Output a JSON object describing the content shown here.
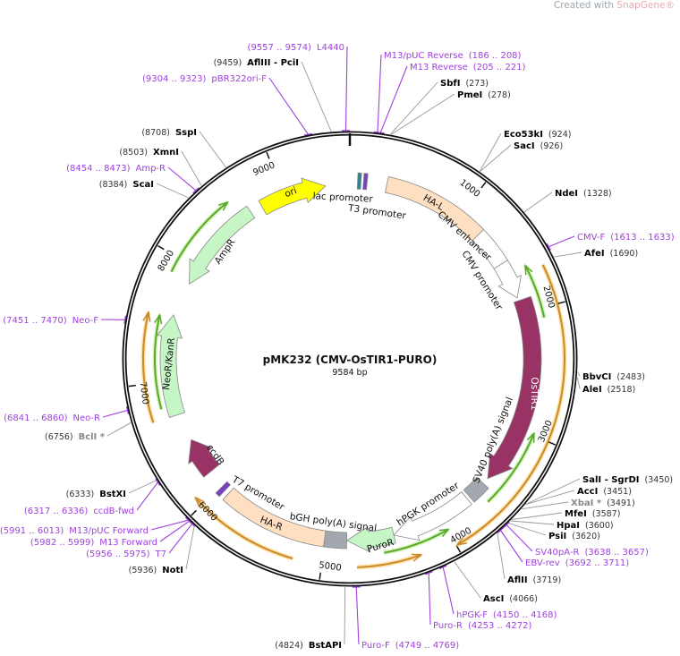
{
  "watermark": {
    "prefix": "Created with ",
    "brand": "SnapGene®"
  },
  "plasmid": {
    "name": "pMK232 (CMV-OsTIR1-PURO)",
    "length": "9584 bp"
  },
  "ticks": [
    "1000",
    "2000",
    "3000",
    "4000",
    "5000",
    "6000",
    "7000",
    "8000",
    "9000"
  ],
  "features": [
    {
      "label": "ori",
      "color": "#ffff00"
    },
    {
      "label": "lac promoter",
      "color": "#2f7f8f"
    },
    {
      "label": "T3 promoter",
      "color": "#7a3fc0"
    },
    {
      "label": "HA-L",
      "color": "#ffdfc2"
    },
    {
      "label": "CMV enhancer",
      "color": "#ffffff"
    },
    {
      "label": "CMV promoter",
      "color": "#ffffff"
    },
    {
      "label": "OsTIR1",
      "color": "#993366"
    },
    {
      "label": "SV40 poly(A) signal",
      "color": "#a3a8b0"
    },
    {
      "label": "hPGK promoter",
      "color": "#ffffff"
    },
    {
      "label": "PuroR",
      "color": "#c6f5c6"
    },
    {
      "label": "bGH poly(A) signal",
      "color": "#a3a8b0"
    },
    {
      "label": "HA-R",
      "color": "#ffdfc2"
    },
    {
      "label": "T7 promoter",
      "color": "#7a3fc0"
    },
    {
      "label": "ccdB",
      "color": "#993366"
    },
    {
      "label": "NeoR/KanR",
      "color": "#c6f5c6"
    },
    {
      "label": "AmpR",
      "color": "#c6f5c6"
    }
  ],
  "primer_colors": {
    "forward": "#5aa82a",
    "reverse": "#c88a2a"
  },
  "sites": [
    {
      "pos": "(9557 .. 9574)",
      "name": "L4440",
      "type": "primer"
    },
    {
      "pos": "(9459)",
      "name": "AflIII - PciI",
      "type": "enzyme"
    },
    {
      "pos": "(9304 .. 9323)",
      "name": "pBR322ori-F",
      "type": "primer"
    },
    {
      "pos": "(8708)",
      "name": "SspI",
      "type": "enzyme"
    },
    {
      "pos": "(8503)",
      "name": "XmnI",
      "type": "enzyme"
    },
    {
      "pos": "(8454 .. 8473)",
      "name": "Amp-R",
      "type": "primer"
    },
    {
      "pos": "(8384)",
      "name": "ScaI",
      "type": "enzyme"
    },
    {
      "pos": "(7451 .. 7470)",
      "name": "Neo-F",
      "type": "primer"
    },
    {
      "pos": "(6841 .. 6860)",
      "name": "Neo-R",
      "type": "primer"
    },
    {
      "pos": "(6756)",
      "name": "BclI *",
      "type": "nonunique"
    },
    {
      "pos": "(6333)",
      "name": "BstXI",
      "type": "enzyme"
    },
    {
      "pos": "(6317 .. 6336)",
      "name": "ccdB-fwd",
      "type": "primer"
    },
    {
      "pos": "(5991 .. 6013)",
      "name": "M13/pUC Forward",
      "type": "primer"
    },
    {
      "pos": "(5982 .. 5999)",
      "name": "M13 Forward",
      "type": "primer"
    },
    {
      "pos": "(5956 .. 5975)",
      "name": "T7",
      "type": "primer"
    },
    {
      "pos": "(5936)",
      "name": "NotI",
      "type": "enzyme"
    },
    {
      "pos": "(4824)",
      "name": "BstAPI",
      "type": "enzyme"
    },
    {
      "pos": "(186 .. 208)",
      "name": "M13/pUC Reverse",
      "type": "primer"
    },
    {
      "pos": "(205 .. 221)",
      "name": "M13 Reverse",
      "type": "primer"
    },
    {
      "pos": "(273)",
      "name": "SbfI",
      "type": "enzyme"
    },
    {
      "pos": "(278)",
      "name": "PmeI",
      "type": "enzyme"
    },
    {
      "pos": "(924)",
      "name": "Eco53kI",
      "type": "enzyme"
    },
    {
      "pos": "(926)",
      "name": "SacI",
      "type": "enzyme"
    },
    {
      "pos": "(1328)",
      "name": "NdeI",
      "type": "enzyme"
    },
    {
      "pos": "(1613 .. 1633)",
      "name": "CMV-F",
      "type": "primer"
    },
    {
      "pos": "(1690)",
      "name": "AfeI",
      "type": "enzyme"
    },
    {
      "pos": "(2483)",
      "name": "BbvCI",
      "type": "enzyme"
    },
    {
      "pos": "(2518)",
      "name": "AleI",
      "type": "enzyme"
    },
    {
      "pos": "(3450)",
      "name": "SalI - SgrDI",
      "type": "enzyme"
    },
    {
      "pos": "(3451)",
      "name": "AccI",
      "type": "enzyme"
    },
    {
      "pos": "(3491)",
      "name": "XbaI *",
      "type": "nonunique"
    },
    {
      "pos": "(3587)",
      "name": "MfeI",
      "type": "enzyme"
    },
    {
      "pos": "(3600)",
      "name": "HpaI",
      "type": "enzyme"
    },
    {
      "pos": "(3620)",
      "name": "PsiI",
      "type": "enzyme"
    },
    {
      "pos": "(3638 .. 3657)",
      "name": "SV40pA-R",
      "type": "primer"
    },
    {
      "pos": "(3692 .. 3711)",
      "name": "EBV-rev",
      "type": "primer"
    },
    {
      "pos": "(3719)",
      "name": "AflII",
      "type": "enzyme"
    },
    {
      "pos": "(4066)",
      "name": "AscI",
      "type": "enzyme"
    },
    {
      "pos": "(4150 .. 4168)",
      "name": "hPGK-F",
      "type": "primer"
    },
    {
      "pos": "(4253 .. 4272)",
      "name": "Puro-R",
      "type": "primer"
    },
    {
      "pos": "(4749 .. 4769)",
      "name": "Puro-F",
      "type": "primer"
    }
  ]
}
